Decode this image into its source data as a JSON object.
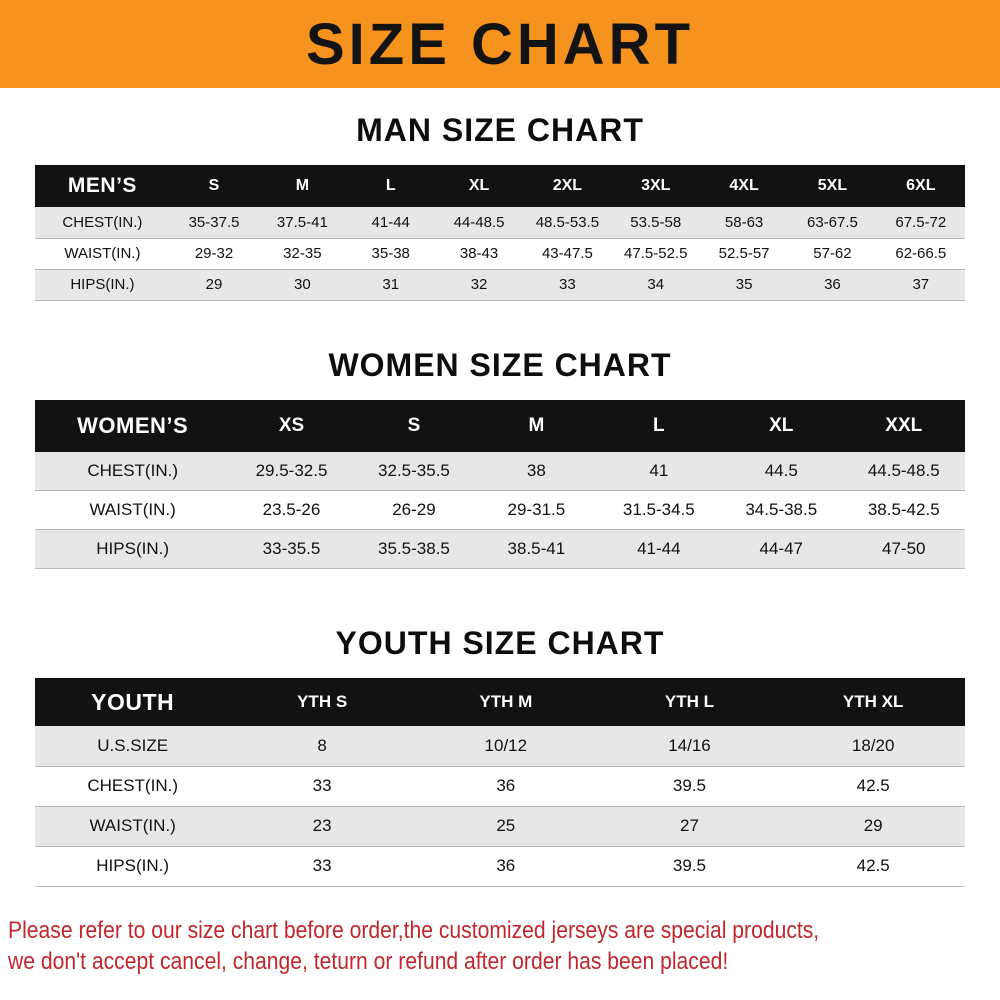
{
  "banner": {
    "title": "SIZE CHART"
  },
  "theme": {
    "banner_bg": "#f6921e",
    "header_bg": "#121212",
    "header_text": "#ffffff",
    "row_shade": "#e7e7e7",
    "notice_text": "#c1272d"
  },
  "sections": [
    {
      "heading": "MAN SIZE CHART",
      "table": {
        "title": "MEN’S",
        "columns": [
          "S",
          "M",
          "L",
          "XL",
          "2XL",
          "3XL",
          "4XL",
          "5XL",
          "6XL"
        ],
        "rows": [
          {
            "label": "CHEST(IN.)",
            "values": [
              "35-37.5",
              "37.5-41",
              "41-44",
              "44-48.5",
              "48.5-53.5",
              "53.5-58",
              "58-63",
              "63-67.5",
              "67.5-72"
            ]
          },
          {
            "label": "WAIST(IN.)",
            "values": [
              "29-32",
              "32-35",
              "35-38",
              "38-43",
              "43-47.5",
              "47.5-52.5",
              "52.5-57",
              "57-62",
              "62-66.5"
            ]
          },
          {
            "label": "HIPS(IN.)",
            "values": [
              "29",
              "30",
              "31",
              "32",
              "33",
              "34",
              "35",
              "36",
              "37"
            ]
          }
        ]
      }
    },
    {
      "heading": "WOMEN SIZE CHART",
      "table": {
        "title": "WOMEN’S",
        "columns": [
          "XS",
          "S",
          "M",
          "L",
          "XL",
          "XXL"
        ],
        "rows": [
          {
            "label": "CHEST(IN.)",
            "values": [
              "29.5-32.5",
              "32.5-35.5",
              "38",
              "41",
              "44.5",
              "44.5-48.5"
            ]
          },
          {
            "label": "WAIST(IN.)",
            "values": [
              "23.5-26",
              "26-29",
              "29-31.5",
              "31.5-34.5",
              "34.5-38.5",
              "38.5-42.5"
            ]
          },
          {
            "label": "HIPS(IN.)",
            "values": [
              "33-35.5",
              "35.5-38.5",
              "38.5-41",
              "41-44",
              "44-47",
              "47-50"
            ]
          }
        ]
      }
    },
    {
      "heading": "YOUTH SIZE CHART",
      "table": {
        "title": "YOUTH",
        "columns": [
          "YTH S",
          "YTH M",
          "YTH L",
          "YTH XL"
        ],
        "rows": [
          {
            "label": "U.S.SIZE",
            "values": [
              "8",
              "10/12",
              "14/16",
              "18/20"
            ]
          },
          {
            "label": "CHEST(IN.)",
            "values": [
              "33",
              "36",
              "39.5",
              "42.5"
            ]
          },
          {
            "label": "WAIST(IN.)",
            "values": [
              "23",
              "25",
              "27",
              "29"
            ]
          },
          {
            "label": "HIPS(IN.)",
            "values": [
              "33",
              "36",
              "39.5",
              "42.5"
            ]
          }
        ]
      }
    }
  ],
  "notice": {
    "lines": [
      "Please refer to our size chart before order,the customized jerseys are special products,",
      "we don't accept cancel, change, teturn or refund after order has been placed!"
    ]
  }
}
